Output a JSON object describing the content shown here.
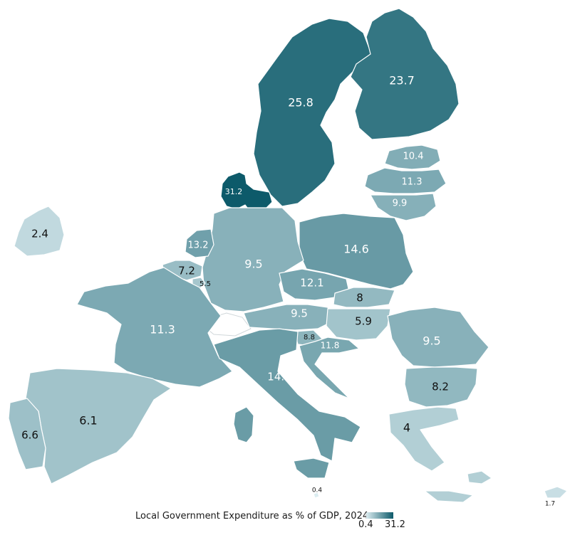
{
  "title": "",
  "legend": {
    "title": "Local Government Expenditure as % of GDP, 2024",
    "min_label": "0.4",
    "max_label": "31.2",
    "min_value": 0.4,
    "max_value": 31.2,
    "color_low": "#dbecf0",
    "color_high": "#0d5a6a"
  },
  "label_colors": {
    "dark_text": "#111111",
    "light_text": "#ffffff"
  },
  "regions": [
    {
      "code": "DK",
      "value": 31.2,
      "label": "31.2"
    },
    {
      "code": "SE",
      "value": 25.8,
      "label": "25.8"
    },
    {
      "code": "FI",
      "value": 23.7,
      "label": "23.7"
    },
    {
      "code": "EE",
      "value": 10.4,
      "label": "10.4"
    },
    {
      "code": "LV",
      "value": 11.3,
      "label": "11.3"
    },
    {
      "code": "LT",
      "value": 9.9,
      "label": "9.9"
    },
    {
      "code": "PL",
      "value": 14.6,
      "label": "14.6"
    },
    {
      "code": "DE",
      "value": 9.5,
      "label": "9.5"
    },
    {
      "code": "NL",
      "value": 13.2,
      "label": "13.2"
    },
    {
      "code": "BE",
      "value": 7.2,
      "label": "7.2"
    },
    {
      "code": "LU",
      "value": 5.5,
      "label": "5.5"
    },
    {
      "code": "IE",
      "value": 2.4,
      "label": "2.4"
    },
    {
      "code": "FR",
      "value": 11.3,
      "label": "11.3"
    },
    {
      "code": "CZ",
      "value": 12.1,
      "label": "12.1"
    },
    {
      "code": "SK",
      "value": 8,
      "label": "8"
    },
    {
      "code": "AT",
      "value": 9.5,
      "label": "9.5"
    },
    {
      "code": "HU",
      "value": 5.9,
      "label": "5.9"
    },
    {
      "code": "SI",
      "value": 8.8,
      "label": "8.8"
    },
    {
      "code": "HR",
      "value": 11.8,
      "label": "11.8"
    },
    {
      "code": "RO",
      "value": 9.5,
      "label": "9.5"
    },
    {
      "code": "BG",
      "value": 8.2,
      "label": "8.2"
    },
    {
      "code": "IT",
      "value": 14.3,
      "label": "14.3"
    },
    {
      "code": "ES",
      "value": 6.1,
      "label": "6.1"
    },
    {
      "code": "PT",
      "value": 6.6,
      "label": "6.6"
    },
    {
      "code": "GR",
      "value": 4,
      "label": "4"
    },
    {
      "code": "MT",
      "value": 0.4,
      "label": "0.4"
    },
    {
      "code": "CY",
      "value": 1.7,
      "label": "1.7"
    }
  ]
}
